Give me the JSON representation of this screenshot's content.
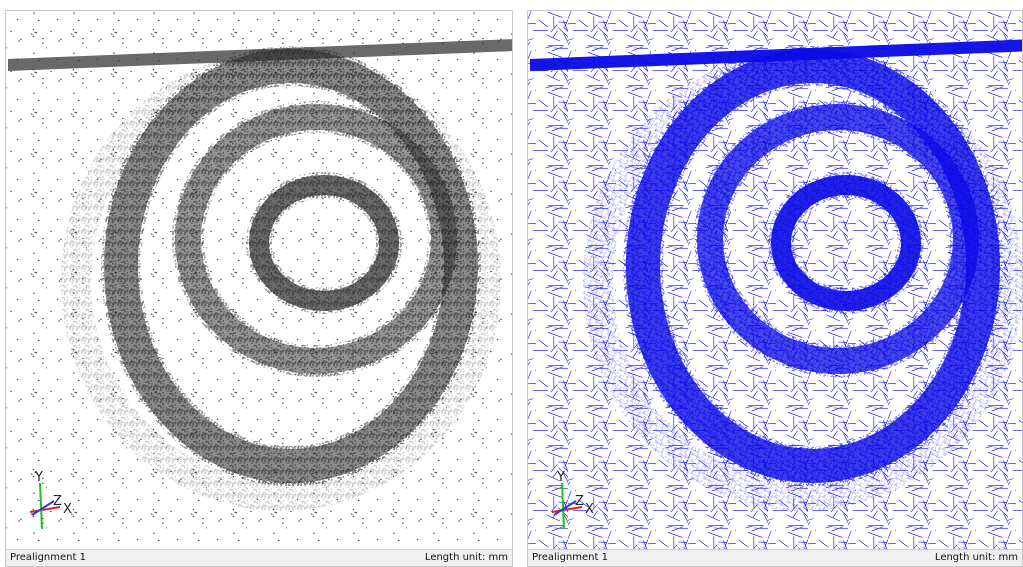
{
  "panels": [
    {
      "status_left": "Prealignment 1",
      "status_right": "Length unit: mm",
      "axes": {
        "y": "Y",
        "z": "Z",
        "x": "X"
      }
    },
    {
      "status_left": "Prealignment 1",
      "status_right": "Length unit: mm",
      "axes": {
        "y": "Y",
        "z": "Z",
        "x": "X"
      }
    }
  ]
}
